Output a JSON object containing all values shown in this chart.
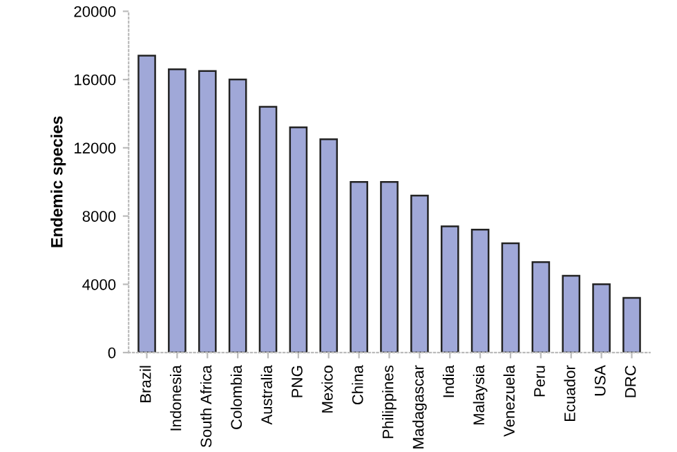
{
  "chart_data": {
    "type": "bar",
    "ylabel": "Endemic species",
    "categories": [
      "Brazil",
      "Indonesia",
      "South Africa",
      "Colombia",
      "Australia",
      "PNG",
      "Mexico",
      "China",
      "Philippines",
      "Madagascar",
      "India",
      "Malaysia",
      "Venezuela",
      "Peru",
      "Ecuador",
      "USA",
      "DRC"
    ],
    "values": [
      17400,
      16600,
      16500,
      16000,
      14400,
      13200,
      12500,
      10000,
      10000,
      9200,
      7400,
      7200,
      6400,
      5300,
      4500,
      4000,
      3200
    ],
    "color": "#a0a8d8",
    "ylim": [
      0,
      20000
    ],
    "yticks": [
      0,
      4000,
      8000,
      12000,
      16000,
      20000
    ],
    "grid": false,
    "legend": false
  }
}
